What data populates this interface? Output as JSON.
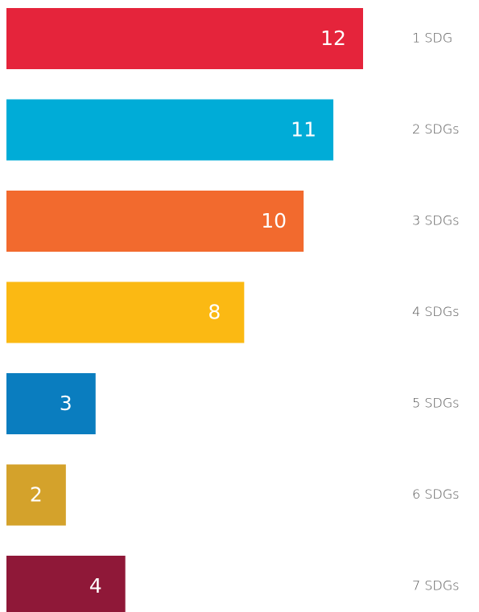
{
  "chart_data": {
    "type": "bar",
    "orientation": "horizontal",
    "categories": [
      "1 SDG",
      "2 SDGs",
      "3 SDGs",
      "4 SDGs",
      "5 SDGs",
      "6 SDGs",
      "7 SDGs"
    ],
    "values": [
      12,
      11,
      10,
      8,
      3,
      2,
      4
    ],
    "colors": [
      "#e5243b",
      "#00acd7",
      "#f26a2e",
      "#fbb913",
      "#0a7dbf",
      "#d4a22b",
      "#8f1838"
    ]
  }
}
